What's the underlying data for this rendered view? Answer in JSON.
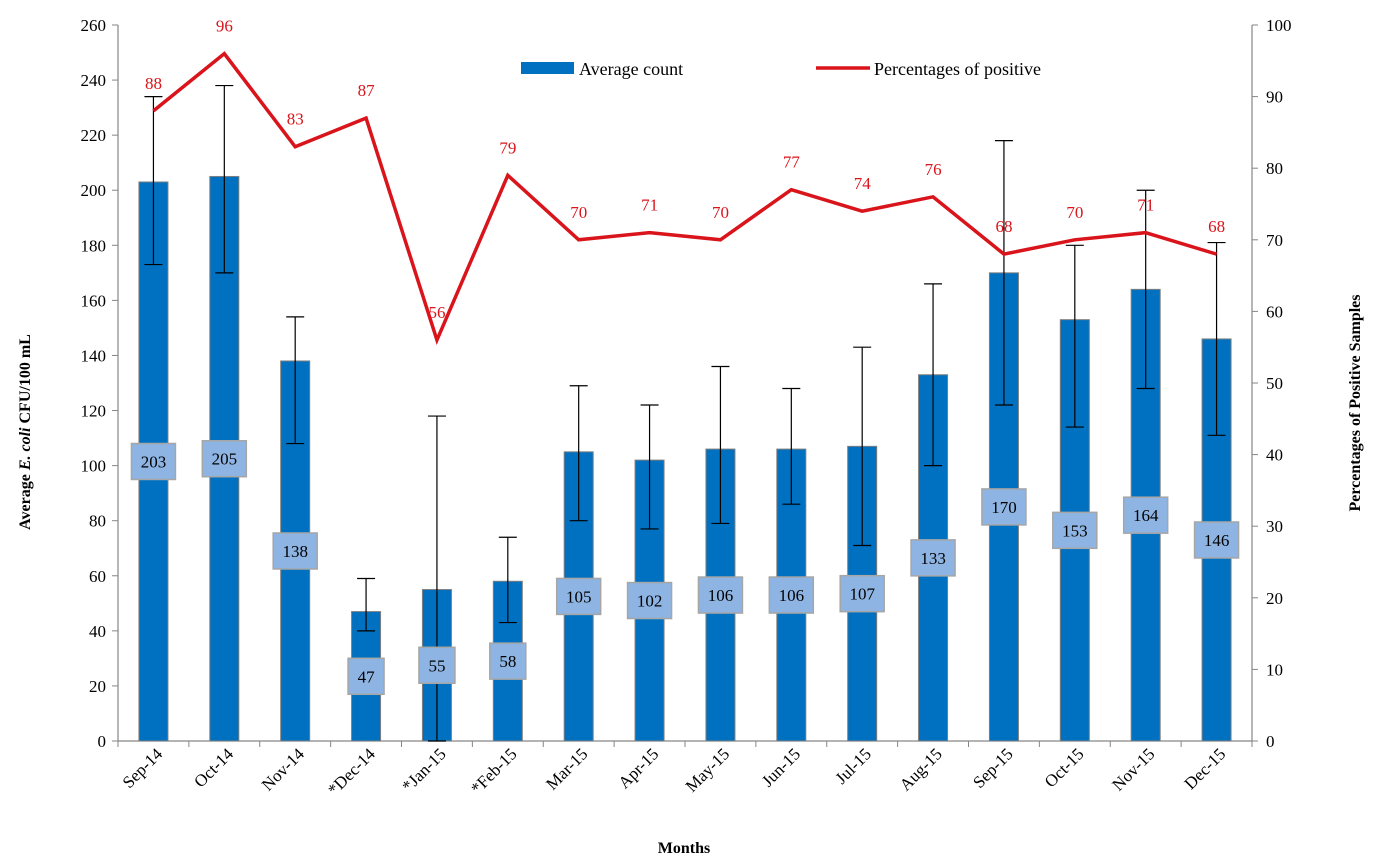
{
  "chart_data": {
    "type": "bar",
    "categories": [
      "Sep-14",
      "Oct-14",
      "Nov-14",
      "*Dec-14",
      "*Jan-15",
      "*Feb-15",
      "Mar-15",
      "Apr-15",
      "May-15",
      "Jun-15",
      "Jul-15",
      "Aug-15",
      "Sep-15",
      "Oct-15",
      "Nov-15",
      "Dec-15"
    ],
    "series": [
      {
        "name": "Average count",
        "type": "bar",
        "axis": "left",
        "color": "#0070C0",
        "values": [
          203,
          205,
          138,
          47,
          55,
          58,
          105,
          102,
          106,
          106,
          107,
          133,
          170,
          153,
          164,
          146
        ],
        "value_labels": [
          "203",
          "205",
          "138",
          "47",
          "55",
          "58",
          "105",
          "102",
          "106",
          "106",
          "107",
          "133",
          "170",
          "153",
          "164",
          "146"
        ],
        "error_low": [
          173,
          170,
          108,
          40,
          0,
          43,
          80,
          77,
          79,
          86,
          71,
          100,
          122,
          114,
          128,
          111
        ],
        "error_high": [
          234,
          238,
          154,
          59,
          118,
          74,
          129,
          122,
          136,
          128,
          143,
          166,
          218,
          180,
          200,
          181
        ]
      },
      {
        "name": "Percentages of positive",
        "type": "line",
        "axis": "right",
        "color": "#D9141B",
        "values": [
          88,
          96,
          83,
          87,
          56,
          79,
          70,
          71,
          70,
          77,
          74,
          76,
          68,
          70,
          71,
          68
        ],
        "value_labels": [
          "88",
          "96",
          "83",
          "87",
          "56",
          "79",
          "70",
          "71",
          "70",
          "77",
          "74",
          "76",
          "68",
          "70",
          "71",
          "68"
        ]
      }
    ],
    "y_left": {
      "label_prefix": "Average ",
      "label_italic": "E. coli",
      "label_suffix": " CFU/100 mL",
      "ylim": [
        0,
        260
      ],
      "ticks": [
        "0",
        "20",
        "40",
        "60",
        "80",
        "100",
        "120",
        "140",
        "160",
        "180",
        "200",
        "220",
        "240",
        "260"
      ]
    },
    "y_right": {
      "label": "Percentages of Positive Samples",
      "ylim": [
        0,
        100
      ],
      "ticks": [
        "0",
        "10",
        "20",
        "30",
        "40",
        "50",
        "60",
        "70",
        "80",
        "90",
        "100"
      ]
    },
    "xlabel": "Months",
    "legend_position": "top-center",
    "grid": false,
    "label_box_color": "#8DB4E2"
  }
}
